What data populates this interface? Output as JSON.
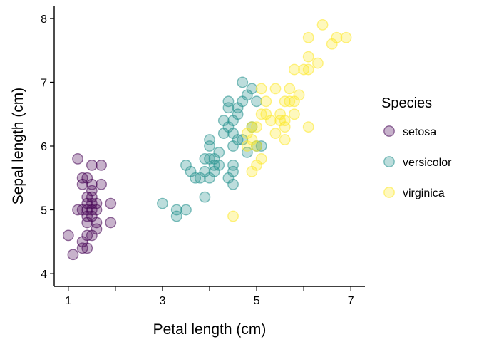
{
  "chart_data": {
    "type": "scatter",
    "xlabel": "Petal length (cm)",
    "ylabel": "Sepal length (cm)",
    "xlim": [
      0.7,
      7.3
    ],
    "ylim": [
      3.8,
      8.2
    ],
    "x_ticks": [
      1,
      3,
      5,
      7
    ],
    "x_minor_ticks": [
      2,
      4,
      6
    ],
    "y_ticks": [
      4,
      5,
      6,
      7,
      8
    ],
    "grid": false,
    "legend": {
      "title": "Species",
      "position": "right"
    },
    "series": [
      {
        "name": "setosa",
        "color": "#440154",
        "points": [
          [
            1.0,
            4.6
          ],
          [
            1.1,
            4.3
          ],
          [
            1.2,
            5.0
          ],
          [
            1.2,
            5.8
          ],
          [
            1.3,
            4.4
          ],
          [
            1.3,
            4.5
          ],
          [
            1.3,
            5.0
          ],
          [
            1.3,
            5.4
          ],
          [
            1.3,
            5.5
          ],
          [
            1.4,
            4.4
          ],
          [
            1.4,
            4.6
          ],
          [
            1.4,
            4.8
          ],
          [
            1.4,
            4.9
          ],
          [
            1.4,
            5.0
          ],
          [
            1.4,
            5.1
          ],
          [
            1.4,
            5.2
          ],
          [
            1.4,
            5.5
          ],
          [
            1.5,
            4.6
          ],
          [
            1.5,
            4.9
          ],
          [
            1.5,
            5.0
          ],
          [
            1.5,
            5.1
          ],
          [
            1.5,
            5.2
          ],
          [
            1.5,
            5.3
          ],
          [
            1.5,
            5.4
          ],
          [
            1.5,
            5.7
          ],
          [
            1.6,
            4.7
          ],
          [
            1.6,
            4.8
          ],
          [
            1.6,
            5.0
          ],
          [
            1.6,
            5.1
          ],
          [
            1.7,
            5.4
          ],
          [
            1.7,
            5.7
          ],
          [
            1.9,
            4.8
          ],
          [
            1.9,
            5.1
          ]
        ]
      },
      {
        "name": "versicolor",
        "color": "#21908C",
        "points": [
          [
            3.0,
            5.1
          ],
          [
            3.3,
            4.9
          ],
          [
            3.3,
            5.0
          ],
          [
            3.5,
            5.0
          ],
          [
            3.5,
            5.7
          ],
          [
            3.6,
            5.6
          ],
          [
            3.7,
            5.5
          ],
          [
            3.8,
            5.5
          ],
          [
            3.9,
            5.6
          ],
          [
            3.9,
            5.8
          ],
          [
            3.9,
            5.2
          ],
          [
            4.0,
            5.5
          ],
          [
            4.0,
            5.8
          ],
          [
            4.0,
            6.0
          ],
          [
            4.0,
            6.1
          ],
          [
            4.1,
            5.6
          ],
          [
            4.1,
            5.7
          ],
          [
            4.1,
            5.8
          ],
          [
            4.2,
            5.7
          ],
          [
            4.2,
            5.9
          ],
          [
            4.3,
            6.2
          ],
          [
            4.3,
            6.4
          ],
          [
            4.4,
            5.5
          ],
          [
            4.4,
            6.3
          ],
          [
            4.4,
            6.6
          ],
          [
            4.4,
            6.7
          ],
          [
            4.5,
            5.4
          ],
          [
            4.5,
            5.6
          ],
          [
            4.5,
            5.7
          ],
          [
            4.5,
            6.0
          ],
          [
            4.5,
            6.2
          ],
          [
            4.5,
            6.4
          ],
          [
            4.6,
            6.1
          ],
          [
            4.6,
            6.5
          ],
          [
            4.6,
            6.6
          ],
          [
            4.7,
            6.1
          ],
          [
            4.7,
            6.7
          ],
          [
            4.7,
            7.0
          ],
          [
            4.8,
            5.9
          ],
          [
            4.8,
            6.8
          ],
          [
            4.9,
            6.3
          ],
          [
            4.9,
            6.9
          ],
          [
            5.0,
            6.0
          ],
          [
            5.0,
            6.7
          ],
          [
            5.1,
            6.0
          ]
        ]
      },
      {
        "name": "virginica",
        "color": "#FDE725",
        "points": [
          [
            4.5,
            4.9
          ],
          [
            4.8,
            6.0
          ],
          [
            4.8,
            6.2
          ],
          [
            4.9,
            5.6
          ],
          [
            4.9,
            6.1
          ],
          [
            4.9,
            6.3
          ],
          [
            5.0,
            5.7
          ],
          [
            5.0,
            6.0
          ],
          [
            5.0,
            6.3
          ],
          [
            5.1,
            5.8
          ],
          [
            5.1,
            6.5
          ],
          [
            5.1,
            6.9
          ],
          [
            5.2,
            6.5
          ],
          [
            5.2,
            6.7
          ],
          [
            5.3,
            6.4
          ],
          [
            5.4,
            6.2
          ],
          [
            5.4,
            6.9
          ],
          [
            5.5,
            6.4
          ],
          [
            5.5,
            6.5
          ],
          [
            5.6,
            6.1
          ],
          [
            5.6,
            6.3
          ],
          [
            5.6,
            6.4
          ],
          [
            5.6,
            6.7
          ],
          [
            5.7,
            6.7
          ],
          [
            5.7,
            6.9
          ],
          [
            5.8,
            6.5
          ],
          [
            5.8,
            6.7
          ],
          [
            5.8,
            7.2
          ],
          [
            5.9,
            6.8
          ],
          [
            6.0,
            7.2
          ],
          [
            6.1,
            6.3
          ],
          [
            6.1,
            7.2
          ],
          [
            6.1,
            7.4
          ],
          [
            6.1,
            7.7
          ],
          [
            6.3,
            7.3
          ],
          [
            6.4,
            7.9
          ],
          [
            6.6,
            7.6
          ],
          [
            6.7,
            7.7
          ],
          [
            6.9,
            7.7
          ]
        ]
      }
    ]
  }
}
